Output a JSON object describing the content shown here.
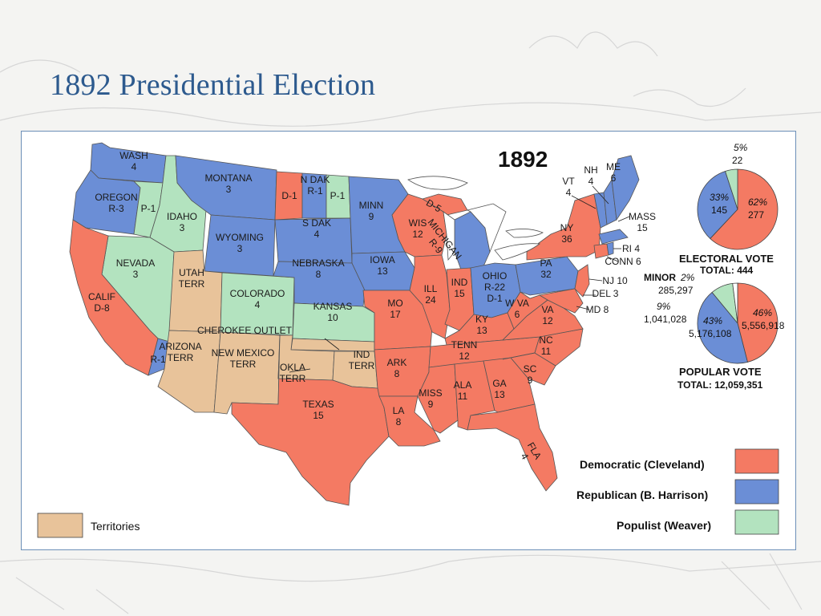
{
  "title": "1892 Presidential Election",
  "map": {
    "year": "1892",
    "colors": {
      "democratic": "#f47a63",
      "republican": "#6b8ed6",
      "populist": "#b3e3bf",
      "territory": "#e8c39a",
      "water": "#ffffff",
      "border": "#555555"
    },
    "states": [
      {
        "id": "wash",
        "name": "WASH",
        "value": "4",
        "party": "republican"
      },
      {
        "id": "oregon",
        "name": "OREGON",
        "value": "R-3",
        "party": "republican"
      },
      {
        "id": "oregon-p",
        "name": "",
        "value": "P-1",
        "party": "populist"
      },
      {
        "id": "calif",
        "name": "CALIF",
        "value": "D-8",
        "party": "democratic"
      },
      {
        "id": "calif-r",
        "name": "",
        "value": "R-1",
        "party": "republican"
      },
      {
        "id": "nevada",
        "name": "NEVADA",
        "value": "3",
        "party": "populist"
      },
      {
        "id": "idaho",
        "name": "IDAHO",
        "value": "3",
        "party": "populist"
      },
      {
        "id": "montana",
        "name": "MONTANA",
        "value": "3",
        "party": "republican"
      },
      {
        "id": "wyoming",
        "name": "WYOMING",
        "value": "3",
        "party": "republican"
      },
      {
        "id": "utah",
        "name": "UTAH",
        "value": "TERR",
        "party": "territory"
      },
      {
        "id": "arizona",
        "name": "ARIZONA",
        "value": "TERR",
        "party": "territory"
      },
      {
        "id": "newmexico",
        "name": "NEW MEXICO",
        "value": "TERR",
        "party": "territory"
      },
      {
        "id": "colorado",
        "name": "COLORADO",
        "value": "4",
        "party": "populist"
      },
      {
        "id": "ndak-d",
        "name": "",
        "value": "D-1",
        "party": "democratic"
      },
      {
        "id": "ndak",
        "name": "N DAK",
        "value": "R-1",
        "party": "republican"
      },
      {
        "id": "ndak-p",
        "name": "",
        "value": "P-1",
        "party": "populist"
      },
      {
        "id": "sdak",
        "name": "S DAK",
        "value": "4",
        "party": "republican"
      },
      {
        "id": "nebraska",
        "name": "NEBRASKA",
        "value": "8",
        "party": "republican"
      },
      {
        "id": "kansas",
        "name": "KANSAS",
        "value": "10",
        "party": "populist"
      },
      {
        "id": "cherokee",
        "name": "CHEROKEE",
        "value": "OUTLET",
        "party": "territory"
      },
      {
        "id": "okla",
        "name": "OKLA",
        "value": "TERR",
        "party": "territory"
      },
      {
        "id": "ind-terr",
        "name": "IND",
        "value": "TERR",
        "party": "territory"
      },
      {
        "id": "texas",
        "name": "TEXAS",
        "value": "15",
        "party": "democratic"
      },
      {
        "id": "minn",
        "name": "MINN",
        "value": "9",
        "party": "republican"
      },
      {
        "id": "iowa",
        "name": "IOWA",
        "value": "13",
        "party": "republican"
      },
      {
        "id": "mo",
        "name": "MO",
        "value": "17",
        "party": "democratic"
      },
      {
        "id": "ark",
        "name": "ARK",
        "value": "8",
        "party": "democratic"
      },
      {
        "id": "la",
        "name": "LA",
        "value": "8",
        "party": "democratic"
      },
      {
        "id": "wis",
        "name": "WIS",
        "value": "12",
        "party": "democratic"
      },
      {
        "id": "ill",
        "name": "ILL",
        "value": "24",
        "party": "democratic"
      },
      {
        "id": "michigan",
        "name": "MICHIGAN",
        "value": "R-9",
        "party": "republican"
      },
      {
        "id": "mich-d",
        "name": "",
        "value": "D-5",
        "party": "democratic"
      },
      {
        "id": "ind",
        "name": "IND",
        "value": "15",
        "party": "democratic"
      },
      {
        "id": "ohio",
        "name": "OHIO",
        "value": "R-22 D-1",
        "party": "republican"
      },
      {
        "id": "ky",
        "name": "KY",
        "value": "13",
        "party": "democratic"
      },
      {
        "id": "tenn",
        "name": "TENN",
        "value": "12",
        "party": "democratic"
      },
      {
        "id": "miss",
        "name": "MISS",
        "value": "9",
        "party": "democratic"
      },
      {
        "id": "ala",
        "name": "ALA",
        "value": "11",
        "party": "democratic"
      },
      {
        "id": "ga",
        "name": "GA",
        "value": "13",
        "party": "democratic"
      },
      {
        "id": "fla",
        "name": "FLA",
        "value": "4",
        "party": "democratic"
      },
      {
        "id": "sc",
        "name": "SC",
        "value": "9",
        "party": "democratic"
      },
      {
        "id": "nc",
        "name": "NC",
        "value": "11",
        "party": "democratic"
      },
      {
        "id": "va",
        "name": "VA",
        "value": "12",
        "party": "democratic"
      },
      {
        "id": "wva",
        "name": "W VA",
        "value": "6",
        "party": "democratic"
      },
      {
        "id": "pa",
        "name": "PA",
        "value": "32",
        "party": "republican"
      },
      {
        "id": "ny",
        "name": "NY",
        "value": "36",
        "party": "democratic"
      },
      {
        "id": "vt",
        "name": "VT",
        "value": "4",
        "party": "republican"
      },
      {
        "id": "nh",
        "name": "NH",
        "value": "4",
        "party": "republican"
      },
      {
        "id": "me",
        "name": "ME",
        "value": "6",
        "party": "republican"
      },
      {
        "id": "mass",
        "name": "MASS",
        "value": "15",
        "party": "republican"
      },
      {
        "id": "ri",
        "name": "RI",
        "value": "4",
        "party": "republican"
      },
      {
        "id": "conn",
        "name": "CONN",
        "value": "6",
        "party": "democratic"
      },
      {
        "id": "nj",
        "name": "NJ",
        "value": "10",
        "party": "democratic"
      },
      {
        "id": "del",
        "name": "DEL",
        "value": "3",
        "party": "democratic"
      },
      {
        "id": "md",
        "name": "MD",
        "value": "8",
        "party": "democratic"
      }
    ],
    "callouts": {
      "vt": "VT",
      "vt_num": "4",
      "nh": "NH",
      "nh_num": "4",
      "mass": "MASS",
      "mass_num": "15",
      "ri": "RI 4",
      "conn": "CONN 6",
      "nj": "NJ 10",
      "del": "DEL 3",
      "md": "MD 8",
      "ny": "NY",
      "ny_num": "36"
    }
  },
  "electoral_vote": {
    "caption": "ELECTORAL  VOTE",
    "total_label": "TOTAL:  444",
    "slices": [
      {
        "party": "democratic",
        "percent": "62%",
        "value": "277",
        "fraction": 0.62
      },
      {
        "party": "republican",
        "percent": "33%",
        "value": "145",
        "fraction": 0.33
      },
      {
        "party": "populist",
        "percent": "5%",
        "value": "22",
        "fraction": 0.05
      }
    ]
  },
  "popular_vote": {
    "caption": "POPULAR  VOTE",
    "total_label": "TOTAL:  12,059,351",
    "minor_label": "MINOR",
    "slices": [
      {
        "party": "democratic",
        "percent": "46%",
        "value": "5,556,918",
        "fraction": 0.46
      },
      {
        "party": "republican",
        "percent": "43%",
        "value": "5,176,108",
        "fraction": 0.43
      },
      {
        "party": "populist",
        "percent": "9%",
        "value": "1,041,028",
        "fraction": 0.09
      },
      {
        "party": "minor",
        "percent": "2%",
        "value": "285,297",
        "fraction": 0.02
      }
    ]
  },
  "legend": {
    "democratic": "Democratic (Cleveland)",
    "republican": "Republican (B. Harrison)",
    "populist": "Populist (Weaver)",
    "territories": "Territories"
  }
}
